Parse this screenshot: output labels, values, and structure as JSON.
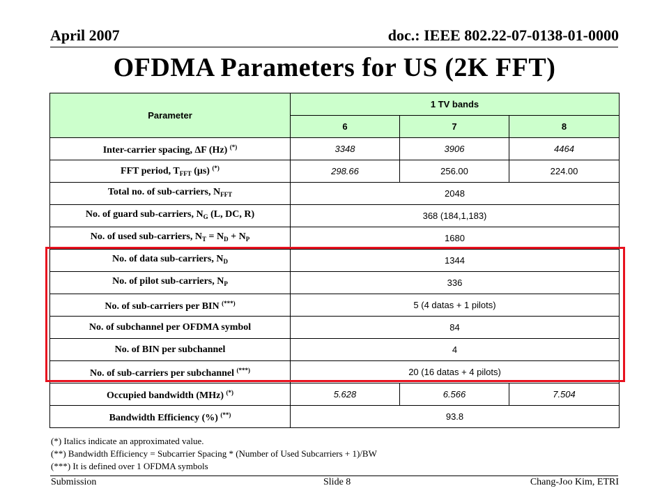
{
  "header": {
    "date": "April 2007",
    "doc": "doc.: IEEE 802.22-07-0138-01-0000"
  },
  "title": "OFDMA Parameters for US (2K FFT)",
  "table": {
    "param_header": "Parameter",
    "bands_header": "1 TV bands",
    "band_columns": [
      "6",
      "7",
      "8"
    ],
    "rows": [
      {
        "label": "Inter-carrier spacing, ΔF (Hz)",
        "note": "(*)",
        "values": [
          "3348",
          "3906",
          "4464"
        ]
      },
      {
        "label": "FFT period, T",
        "sub": "FFT",
        "label_tail": " (μs)",
        "note": "(*)",
        "values": [
          "298.66",
          "256.00",
          "224.00"
        ]
      },
      {
        "label": "Total no. of sub-carriers, N",
        "sub": "FFT",
        "value": "2048"
      },
      {
        "label": "No. of guard sub-carriers, N",
        "sub": "G",
        "label_tail": " (L, DC, R)",
        "value": "368 (184,1,183)"
      },
      {
        "label": "No. of used sub-carriers, N",
        "sub": "T",
        "label_tail": " = N",
        "sub2": "D",
        "label_tail2": " + N",
        "sub3": "P",
        "value": "1680"
      },
      {
        "label": "No. of data sub-carriers, N",
        "sub": "D",
        "value": "1344"
      },
      {
        "label": "No. of pilot sub-carriers, N",
        "sub": "P",
        "value": "336"
      },
      {
        "label": "No. of sub-carriers per BIN",
        "note": "(***)",
        "value": "5 (4 datas + 1 pilots)"
      },
      {
        "label": "No. of subchannel per OFDMA symbol",
        "value": "84"
      },
      {
        "label": "No. of BIN per subchannel",
        "value": "4"
      },
      {
        "label": "No. of sub-carriers per subchannel",
        "note": "(***)",
        "value": "20 (16 datas + 4 pilots)"
      },
      {
        "label": "Occupied bandwidth (MHz)",
        "note": "(*)",
        "values": [
          "5.628",
          "6.566",
          "7.504"
        ]
      },
      {
        "label": "Bandwidth Efficiency (%)",
        "note": "(**)",
        "value": "93.8"
      }
    ]
  },
  "notes": [
    "(*) Italics indicate an approximated value.",
    "(**) Bandwidth Efficiency = Subcarrier Spacing * (Number of Used Subcarriers + 1)/BW",
    "(***) It is defined over 1 OFDMA symbols"
  ],
  "footer": {
    "left": "Submission",
    "center": "Slide 8",
    "right": "Chang-Joo Kim, ETRI"
  },
  "colors": {
    "table_header_bg": "#ccffcc",
    "highlight_border": "#e8121f"
  }
}
